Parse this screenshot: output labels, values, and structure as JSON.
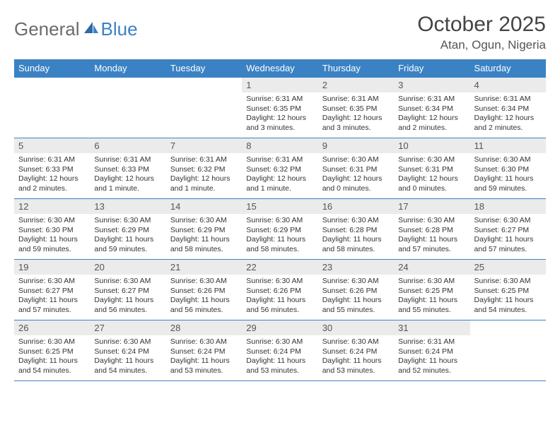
{
  "logo": {
    "word1": "General",
    "word2": "Blue"
  },
  "title": "October 2025",
  "location": "Atan, Ogun, Nigeria",
  "colors": {
    "header_bg": "#3b82c4",
    "header_text": "#ffffff",
    "daynum_bg": "#ebebeb",
    "border": "#3b82c4",
    "body_text": "#333333",
    "title_text": "#444444",
    "logo_grey": "#6b6b6b",
    "logo_blue": "#3b82c4"
  },
  "day_names": [
    "Sunday",
    "Monday",
    "Tuesday",
    "Wednesday",
    "Thursday",
    "Friday",
    "Saturday"
  ],
  "weeks": [
    [
      null,
      null,
      null,
      {
        "n": "1",
        "sr": "6:31 AM",
        "ss": "6:35 PM",
        "dl": "12 hours and 3 minutes."
      },
      {
        "n": "2",
        "sr": "6:31 AM",
        "ss": "6:35 PM",
        "dl": "12 hours and 3 minutes."
      },
      {
        "n": "3",
        "sr": "6:31 AM",
        "ss": "6:34 PM",
        "dl": "12 hours and 2 minutes."
      },
      {
        "n": "4",
        "sr": "6:31 AM",
        "ss": "6:34 PM",
        "dl": "12 hours and 2 minutes."
      }
    ],
    [
      {
        "n": "5",
        "sr": "6:31 AM",
        "ss": "6:33 PM",
        "dl": "12 hours and 2 minutes."
      },
      {
        "n": "6",
        "sr": "6:31 AM",
        "ss": "6:33 PM",
        "dl": "12 hours and 1 minute."
      },
      {
        "n": "7",
        "sr": "6:31 AM",
        "ss": "6:32 PM",
        "dl": "12 hours and 1 minute."
      },
      {
        "n": "8",
        "sr": "6:31 AM",
        "ss": "6:32 PM",
        "dl": "12 hours and 1 minute."
      },
      {
        "n": "9",
        "sr": "6:30 AM",
        "ss": "6:31 PM",
        "dl": "12 hours and 0 minutes."
      },
      {
        "n": "10",
        "sr": "6:30 AM",
        "ss": "6:31 PM",
        "dl": "12 hours and 0 minutes."
      },
      {
        "n": "11",
        "sr": "6:30 AM",
        "ss": "6:30 PM",
        "dl": "11 hours and 59 minutes."
      }
    ],
    [
      {
        "n": "12",
        "sr": "6:30 AM",
        "ss": "6:30 PM",
        "dl": "11 hours and 59 minutes."
      },
      {
        "n": "13",
        "sr": "6:30 AM",
        "ss": "6:29 PM",
        "dl": "11 hours and 59 minutes."
      },
      {
        "n": "14",
        "sr": "6:30 AM",
        "ss": "6:29 PM",
        "dl": "11 hours and 58 minutes."
      },
      {
        "n": "15",
        "sr": "6:30 AM",
        "ss": "6:29 PM",
        "dl": "11 hours and 58 minutes."
      },
      {
        "n": "16",
        "sr": "6:30 AM",
        "ss": "6:28 PM",
        "dl": "11 hours and 58 minutes."
      },
      {
        "n": "17",
        "sr": "6:30 AM",
        "ss": "6:28 PM",
        "dl": "11 hours and 57 minutes."
      },
      {
        "n": "18",
        "sr": "6:30 AM",
        "ss": "6:27 PM",
        "dl": "11 hours and 57 minutes."
      }
    ],
    [
      {
        "n": "19",
        "sr": "6:30 AM",
        "ss": "6:27 PM",
        "dl": "11 hours and 57 minutes."
      },
      {
        "n": "20",
        "sr": "6:30 AM",
        "ss": "6:27 PM",
        "dl": "11 hours and 56 minutes."
      },
      {
        "n": "21",
        "sr": "6:30 AM",
        "ss": "6:26 PM",
        "dl": "11 hours and 56 minutes."
      },
      {
        "n": "22",
        "sr": "6:30 AM",
        "ss": "6:26 PM",
        "dl": "11 hours and 56 minutes."
      },
      {
        "n": "23",
        "sr": "6:30 AM",
        "ss": "6:26 PM",
        "dl": "11 hours and 55 minutes."
      },
      {
        "n": "24",
        "sr": "6:30 AM",
        "ss": "6:25 PM",
        "dl": "11 hours and 55 minutes."
      },
      {
        "n": "25",
        "sr": "6:30 AM",
        "ss": "6:25 PM",
        "dl": "11 hours and 54 minutes."
      }
    ],
    [
      {
        "n": "26",
        "sr": "6:30 AM",
        "ss": "6:25 PM",
        "dl": "11 hours and 54 minutes."
      },
      {
        "n": "27",
        "sr": "6:30 AM",
        "ss": "6:24 PM",
        "dl": "11 hours and 54 minutes."
      },
      {
        "n": "28",
        "sr": "6:30 AM",
        "ss": "6:24 PM",
        "dl": "11 hours and 53 minutes."
      },
      {
        "n": "29",
        "sr": "6:30 AM",
        "ss": "6:24 PM",
        "dl": "11 hours and 53 minutes."
      },
      {
        "n": "30",
        "sr": "6:30 AM",
        "ss": "6:24 PM",
        "dl": "11 hours and 53 minutes."
      },
      {
        "n": "31",
        "sr": "6:31 AM",
        "ss": "6:24 PM",
        "dl": "11 hours and 52 minutes."
      },
      null
    ]
  ],
  "labels": {
    "sunrise": "Sunrise:",
    "sunset": "Sunset:",
    "daylight": "Daylight:"
  }
}
